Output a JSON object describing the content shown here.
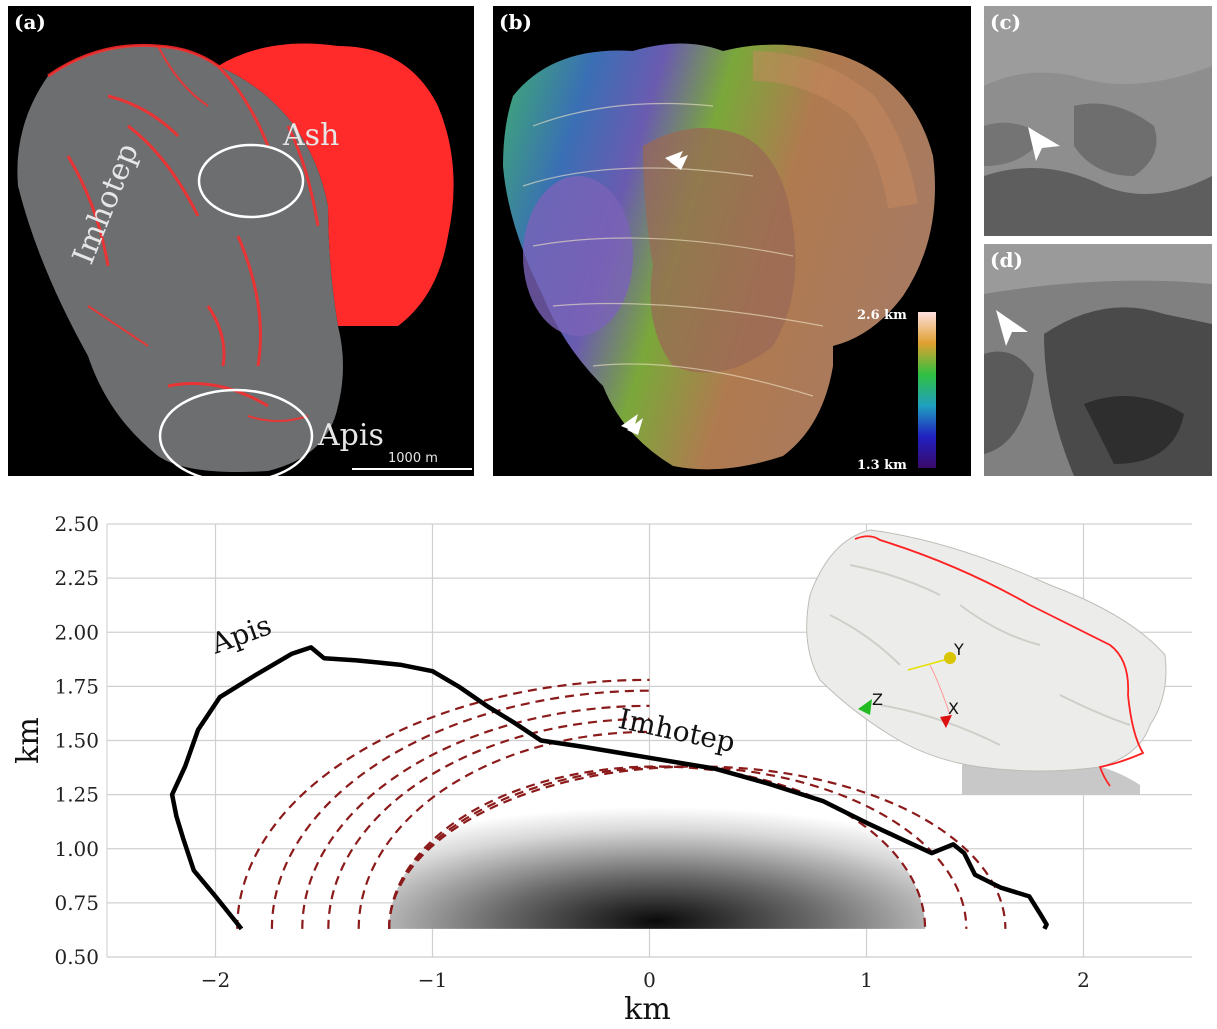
{
  "panels": {
    "a": {
      "label": "(a)",
      "regions": [
        "Ash",
        "Imhotep",
        "Apis"
      ],
      "scale_bar": "1000 m"
    },
    "b": {
      "label": "(b)",
      "colorbar_max": "2.6 km",
      "colorbar_min": "1.3 km"
    },
    "c": {
      "label": "(c)"
    },
    "d": {
      "label": "(d)"
    }
  },
  "inset": {
    "axes": [
      "Y",
      "Z",
      "X"
    ]
  },
  "colors": {
    "outline": "#000000",
    "contour": "#8b1a1a",
    "grid": "#d0d0d0",
    "shape_red": "#ff2a2a"
  },
  "chart_data": {
    "type": "line",
    "xlabel": "km",
    "ylabel": "km",
    "xlim": [
      -2.5,
      2.5
    ],
    "ylim": [
      0.5,
      2.5
    ],
    "xticks": [
      "−2",
      "−1",
      "0",
      "1",
      "2"
    ],
    "xtick_values": [
      -2,
      -1,
      0,
      1,
      2
    ],
    "yticks": [
      "0.50",
      "0.75",
      "1.00",
      "1.25",
      "1.50",
      "1.75",
      "2.00",
      "2.25",
      "2.50"
    ],
    "ytick_values": [
      0.5,
      0.75,
      1.0,
      1.25,
      1.5,
      1.75,
      2.0,
      2.25,
      2.5
    ],
    "annotations": [
      "Apis",
      "Imhotep"
    ],
    "outline": [
      [
        -1.88,
        0.63
      ],
      [
        -2.0,
        0.78
      ],
      [
        -2.1,
        0.9
      ],
      [
        -2.15,
        1.05
      ],
      [
        -2.18,
        1.15
      ],
      [
        -2.2,
        1.25
      ],
      [
        -2.14,
        1.38
      ],
      [
        -2.08,
        1.55
      ],
      [
        -1.98,
        1.7
      ],
      [
        -1.82,
        1.8
      ],
      [
        -1.65,
        1.9
      ],
      [
        -1.56,
        1.93
      ],
      [
        -1.5,
        1.88
      ],
      [
        -1.35,
        1.87
      ],
      [
        -1.15,
        1.85
      ],
      [
        -1.0,
        1.82
      ],
      [
        -0.88,
        1.75
      ],
      [
        -0.75,
        1.66
      ],
      [
        -0.62,
        1.58
      ],
      [
        -0.5,
        1.5
      ],
      [
        -0.3,
        1.47
      ],
      [
        0.0,
        1.42
      ],
      [
        0.3,
        1.37
      ],
      [
        0.55,
        1.3
      ],
      [
        0.8,
        1.22
      ],
      [
        1.0,
        1.12
      ],
      [
        1.15,
        1.05
      ],
      [
        1.3,
        0.98
      ],
      [
        1.4,
        1.02
      ],
      [
        1.45,
        0.98
      ],
      [
        1.5,
        0.88
      ],
      [
        1.62,
        0.82
      ],
      [
        1.75,
        0.78
      ],
      [
        1.8,
        0.7
      ],
      [
        1.83,
        0.65
      ],
      [
        1.82,
        0.63
      ]
    ],
    "contours": [
      {
        "name": "",
        "x0": -1.9,
        "x1": 0.0,
        "peak": 1.78
      },
      {
        "name": "",
        "x0": -1.74,
        "x1": 0.0,
        "peak": 1.73
      },
      {
        "name": "",
        "x0": -1.6,
        "x1": 0.0,
        "peak": 1.66
      },
      {
        "name": "",
        "x0": -1.48,
        "x1": 0.0,
        "peak": 1.6
      },
      {
        "name": "",
        "x0": -1.34,
        "x1": 0.0,
        "peak": 1.54
      },
      {
        "name": "",
        "x0": -1.2,
        "x1": 1.27,
        "peak": 1.38
      },
      {
        "name": "",
        "x0": -1.2,
        "x1": 1.46,
        "peak": 1.38
      },
      {
        "name": "",
        "x0": -1.2,
        "x1": 1.64,
        "peak": 1.38
      }
    ]
  }
}
